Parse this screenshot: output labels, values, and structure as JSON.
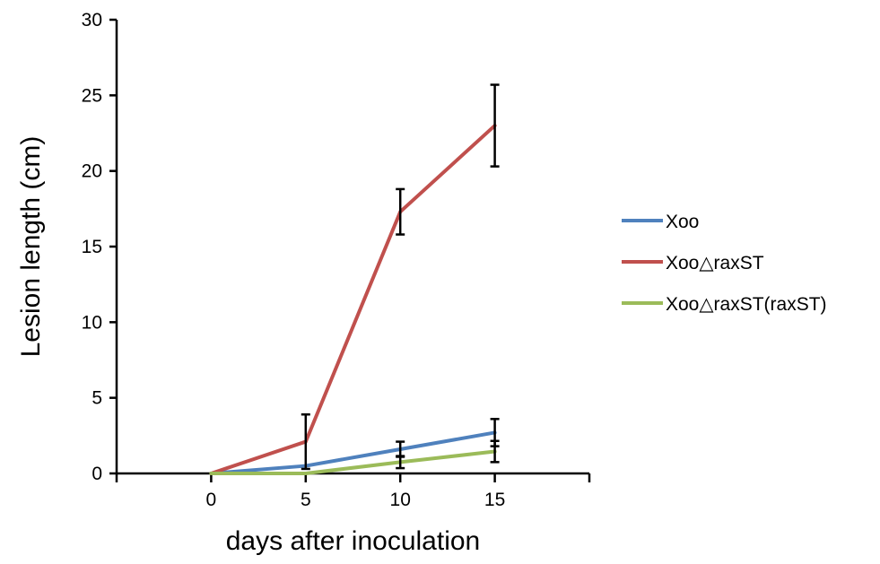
{
  "chart_data": {
    "type": "line",
    "title": "",
    "xlabel": "days after inoculation",
    "ylabel": "Lesion length (cm)",
    "x": [
      0,
      5,
      10,
      15
    ],
    "x_ticks": [
      "0",
      "5",
      "10",
      "15"
    ],
    "xlim": [
      -5,
      20
    ],
    "y_ticks": [
      "0",
      "5",
      "10",
      "15",
      "20",
      "25",
      "30"
    ],
    "ylim": [
      0,
      30
    ],
    "grid": false,
    "legend_position": "right",
    "series": [
      {
        "name": "Xoo",
        "color": "#4F81BD",
        "values": [
          0,
          0.5,
          1.6,
          2.7
        ],
        "errors": [
          0,
          0,
          0.5,
          0.9
        ]
      },
      {
        "name": "Xoo△raxST",
        "color": "#C0504D",
        "values": [
          0,
          2.1,
          17.3,
          23.0
        ],
        "errors": [
          0,
          1.8,
          1.5,
          2.7
        ]
      },
      {
        "name": "Xoo△raxST(raxST)",
        "color": "#9BBB59",
        "values": [
          0,
          0,
          0.75,
          1.45
        ],
        "errors": [
          0,
          0,
          0.4,
          0.7
        ]
      }
    ]
  }
}
